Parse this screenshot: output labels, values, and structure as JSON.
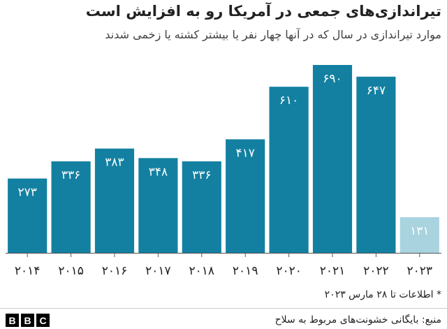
{
  "chart_data": {
    "type": "bar",
    "title": "تیراندازی‌های جمعی در آمریکا رو به افزایش است",
    "subtitle": "موارد تیراندازی در سال که در آنها چهار نفر یا بیشتر کشته یا زخمی شدند",
    "categories": [
      "۲۰۱۴",
      "۲۰۱۵",
      "۲۰۱۶",
      "۲۰۱۷",
      "۲۰۱۸",
      "۲۰۱۹",
      "۲۰۲۰",
      "۲۰۲۱",
      "۲۰۲۲",
      "۲۰۲۳"
    ],
    "values": [
      273,
      336,
      383,
      348,
      336,
      417,
      610,
      690,
      647,
      131
    ],
    "value_labels": [
      "۲۷۳",
      "۳۳۶",
      "۳۸۳",
      "۳۴۸",
      "۳۳۶",
      "۴۱۷",
      "۶۱۰",
      "۶۹۰",
      "۶۴۷",
      "۱۳۱"
    ],
    "colors": [
      "#1380a1",
      "#1380a1",
      "#1380a1",
      "#1380a1",
      "#1380a1",
      "#1380a1",
      "#1380a1",
      "#1380a1",
      "#1380a1",
      "#a8d3df"
    ],
    "note": "* اطلاعات تا ۲۸ مارس ۲۰۲۳",
    "source": "منبع: بایگانی خشونت‌های مربوط به سلاح",
    "logo": [
      "B",
      "B",
      "C"
    ]
  }
}
